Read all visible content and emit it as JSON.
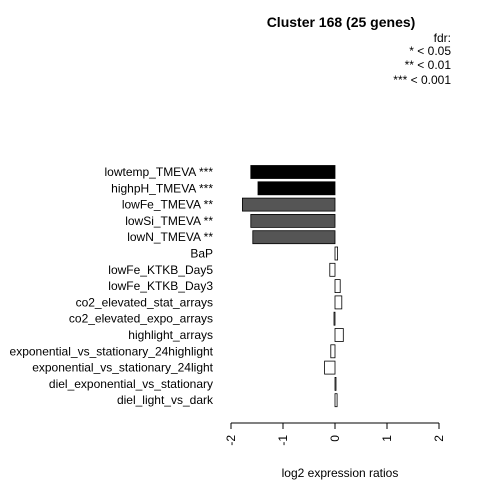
{
  "chart_data": {
    "type": "bar",
    "orientation": "horizontal",
    "title": "Cluster 168 (25 genes)",
    "xlabel": "log2 expression ratios",
    "ylabel": "",
    "xlim": [
      -2,
      2
    ],
    "xticks": [
      "-2",
      "-1",
      "0",
      "1",
      "2"
    ],
    "tick_values": [
      -2,
      -1,
      0,
      1,
      2
    ],
    "legend": {
      "title": "fdr:",
      "entries": [
        "* < 0.05",
        "** < 0.01",
        "*** < 0.001"
      ],
      "position": "top-right"
    },
    "categories": [
      "lowtemp_TMEVA ***",
      "highpH_TMEVA ***",
      "lowFe_TMEVA **",
      "lowSi_TMEVA **",
      "lowN_TMEVA **",
      "BaP",
      "lowFe_KTKB_Day5",
      "lowFe_KTKB_Day3",
      "co2_elevated_stat_arrays",
      "co2_elevated_expo_arrays",
      "highlight_arrays",
      "exponential_vs_stationary_24highlight",
      "exponential_vs_stationary_24light",
      "diel_exponential_vs_stationary",
      "diel_light_vs_dark"
    ],
    "values": [
      -1.62,
      -1.48,
      -1.78,
      -1.62,
      -1.58,
      0.05,
      -0.1,
      0.1,
      0.13,
      -0.02,
      0.16,
      -0.08,
      -0.2,
      0.02,
      0.04
    ],
    "bar_colors": [
      "#000000",
      "#000000",
      "#555555",
      "#555555",
      "#555555",
      "#ffffff",
      "#ffffff",
      "#ffffff",
      "#ffffff",
      "#ffffff",
      "#ffffff",
      "#ffffff",
      "#ffffff",
      "#ffffff",
      "#ffffff"
    ]
  }
}
